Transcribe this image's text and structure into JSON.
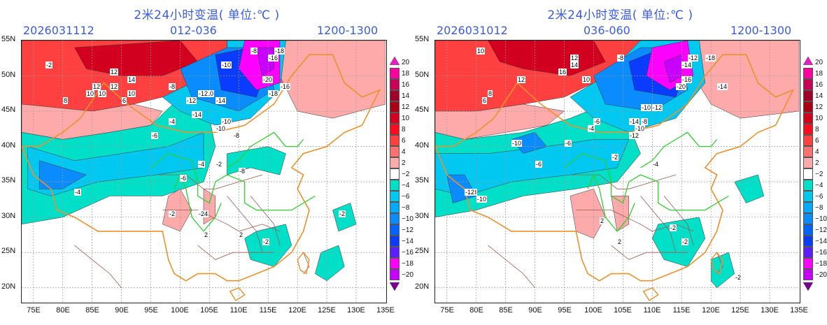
{
  "panels": [
    {
      "title": "2米24小时变温( 单位:℃ )",
      "init_time": "2026031112",
      "forecast_range": "012-036",
      "valid_range": "1200-1300",
      "contour_labels": [
        "8",
        "12",
        "14",
        "12",
        "10",
        "10",
        "12",
        "10",
        "8",
        "6",
        "-8",
        "-10",
        "-10",
        "-14",
        "-18",
        "-16",
        "-20",
        "-16",
        "-18",
        "-12",
        "-8",
        "-12",
        "-14",
        "-10",
        "-4",
        "-6",
        "-8",
        "-10",
        "-4",
        "-2",
        "-6",
        "-4",
        "-8",
        "-2",
        "-24",
        "2",
        "2",
        "-2",
        "-2",
        "-2"
      ]
    },
    {
      "title": "2米24小时变温( 单位:℃ )",
      "init_time": "2026031012",
      "forecast_range": "036-060",
      "valid_range": "1200-1300",
      "contour_labels": [
        "10",
        "12",
        "16",
        "14",
        "10",
        "12",
        "8",
        "6",
        "-8",
        "-12",
        "-18",
        "-14",
        "-16",
        "-20",
        "-14",
        "-10",
        "-12",
        "-12",
        "-14",
        "-10",
        "-8",
        "-6",
        "-4",
        "-10",
        "-8",
        "-6",
        "-12",
        "-10",
        "-2",
        "-4",
        "-6",
        "2",
        "2",
        "-2",
        "-2",
        "-2"
      ]
    }
  ],
  "axes": {
    "lat_ticks": [
      "55N",
      "50N",
      "45N",
      "40N",
      "35N",
      "30N",
      "25N",
      "20N"
    ],
    "lon_ticks": [
      "75E",
      "80E",
      "85E",
      "90E",
      "95E",
      "100E",
      "105E",
      "110E",
      "115E",
      "120E",
      "125E",
      "130E",
      "135E"
    ]
  },
  "colorbar": {
    "labels": [
      "20",
      "18",
      "16",
      "14",
      "12",
      "10",
      "8",
      "6",
      "4",
      "2",
      "−2",
      "−4",
      "−6",
      "−8",
      "−10",
      "−12",
      "−14",
      "−16",
      "−18",
      "−20"
    ],
    "colors": [
      "#ff00a0",
      "#c8005a",
      "#a0002a",
      "#aa0014",
      "#d2001e",
      "#ff0a1e",
      "#ff4040",
      "#ff7070",
      "#ffaaaa",
      "#ffffff",
      "#00e0c8",
      "#00c8f0",
      "#00aaff",
      "#0a8cff",
      "#0064ff",
      "#0a3cff",
      "#5a1eff",
      "#ff00ff",
      "#c800ff"
    ],
    "top_color": "#e020c0",
    "bottom_color": "#7a0090"
  }
}
